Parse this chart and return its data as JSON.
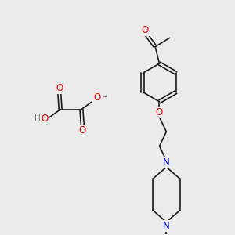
{
  "bg_color": "#ebebeb",
  "bond_color": "#1a1a1a",
  "bond_width": 1.2,
  "atom_colors": {
    "O": "#ff0000",
    "N": "#0000cc",
    "C": "#1a1a1a",
    "H": "#707070"
  },
  "figsize": [
    3.0,
    3.0
  ],
  "dpi": 100,
  "xlim": [
    0,
    10
  ],
  "ylim": [
    0,
    10
  ]
}
